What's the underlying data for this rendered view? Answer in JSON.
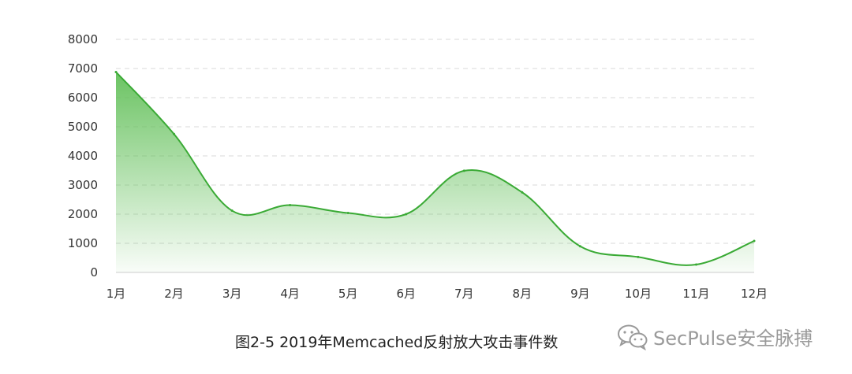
{
  "chart_data": {
    "type": "area",
    "categories": [
      "1月",
      "2月",
      "3月",
      "4月",
      "5月",
      "6月",
      "7月",
      "8月",
      "9月",
      "10月",
      "11月",
      "12月"
    ],
    "values": [
      6880,
      4750,
      2120,
      2310,
      2040,
      2000,
      3490,
      2750,
      900,
      530,
      270,
      1080
    ],
    "ylim": [
      0,
      8000
    ],
    "yticks": [
      0,
      1000,
      2000,
      3000,
      4000,
      5000,
      6000,
      7000,
      8000
    ],
    "grid": true,
    "colors": {
      "line": "#3aaa35",
      "fill": "#63c05a",
      "grid": "#d9d9d9",
      "axis": "#cccccc"
    }
  },
  "caption": "图2-5  2019年Memcached反射放大攻击事件数",
  "watermark": {
    "text": "SecPulse安全脉搏",
    "icon": "wechat-icon"
  }
}
